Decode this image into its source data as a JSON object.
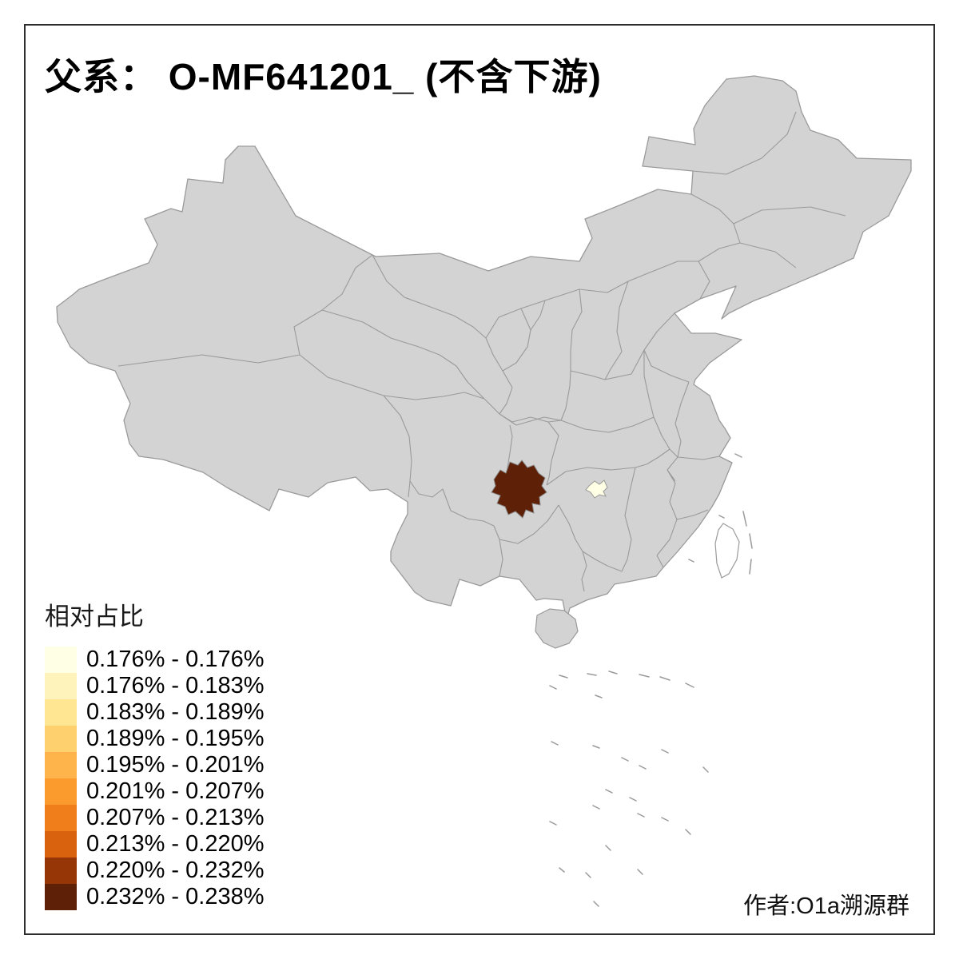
{
  "title": "父系：  O-MF641201_ (不含下游)",
  "legend": {
    "title": "相对占比",
    "classes": [
      {
        "label": "0.176% - 0.176%",
        "color": "#FFFFE5"
      },
      {
        "label": "0.176% - 0.183%",
        "color": "#FFF3BC"
      },
      {
        "label": "0.183% - 0.189%",
        "color": "#FEE692"
      },
      {
        "label": "0.189% - 0.195%",
        "color": "#FED16E"
      },
      {
        "label": "0.195% - 0.201%",
        "color": "#FEB44B"
      },
      {
        "label": "0.201% - 0.207%",
        "color": "#FB9A2D"
      },
      {
        "label": "0.207% - 0.213%",
        "color": "#EF7E1B"
      },
      {
        "label": "0.213% - 0.220%",
        "color": "#D9620E"
      },
      {
        "label": "0.220% - 0.232%",
        "color": "#963607"
      },
      {
        "label": "0.232% - 0.238%",
        "color": "#5E2007"
      }
    ]
  },
  "credit": "作者:O1a溯源群",
  "map": {
    "base_fill": "#D3D3D3",
    "border_color": "#9A9A9A",
    "highlights": [
      {
        "name": "dark-region",
        "value_class": "0.232% - 0.238%",
        "color": "#5E2007"
      },
      {
        "name": "light-region",
        "value_class": "0.176% - 0.176%",
        "color": "#FFFFE5"
      }
    ]
  }
}
